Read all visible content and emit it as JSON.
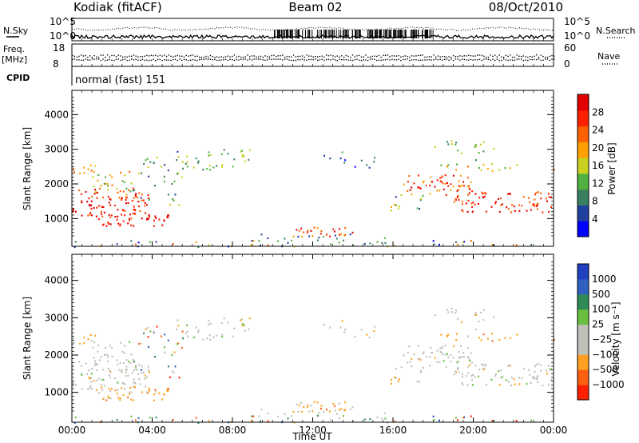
{
  "header": {
    "station": "Kodiak (fitACF)",
    "beam": "Beam 02",
    "date": "08/Oct/2010"
  },
  "noise_panel": {
    "left_label": "N.Sky",
    "right_label": "N.Search",
    "left_ticks": [
      "10^5",
      "10^0"
    ],
    "right_ticks": [
      "10^5",
      "10^0"
    ]
  },
  "freq_panel": {
    "left_label_1": "Freq.",
    "left_label_2": "[MHz]",
    "right_label": "Nave",
    "left_ticks": [
      "18",
      "8"
    ],
    "right_ticks": [
      "60",
      "0"
    ]
  },
  "cpid": {
    "label": "CPID",
    "text": "normal (fast) 151"
  },
  "colors": {
    "power": [
      "#0000ff",
      "#2040a0",
      "#3a8060",
      "#50b040",
      "#c8d020",
      "#ffa000",
      "#ff6000",
      "#ff2000",
      "#e00000"
    ],
    "velocity": [
      "#2040c0",
      "#3060c0",
      "#2e8b57",
      "#6abf40",
      "#c0c0b8",
      "#c0c0b8",
      "#ffa020",
      "#ff6010",
      "#ff2000"
    ]
  },
  "chart_data": [
    {
      "type": "heatmap",
      "panel": "power",
      "ylabel": "Slant Range [km]",
      "yticks": [
        "1000",
        "2000",
        "3000",
        "4000"
      ],
      "ylim": [
        200,
        4700
      ],
      "xlim": [
        0,
        24
      ],
      "colorbar_label": "Power [dB]",
      "colorbar_ticks": [
        "4",
        "8",
        "12",
        "16",
        "20",
        "24",
        "28"
      ],
      "grid": false
    },
    {
      "type": "heatmap",
      "panel": "velocity",
      "ylabel": "Slant Range [km]",
      "yticks": [
        "1000",
        "2000",
        "3000",
        "4000"
      ],
      "ylim": [
        200,
        4700
      ],
      "xlim": [
        0,
        24
      ],
      "xlabel": "Time UT",
      "xticks": [
        "00:00",
        "04:00",
        "08:00",
        "12:00",
        "16:00",
        "20:00",
        "00:00"
      ],
      "colorbar_label": "Velocity [m s⁻¹]",
      "colorbar_ticks": [
        "1000",
        "500",
        "100",
        "25",
        "−25",
        "−100",
        "−500",
        "−1000"
      ],
      "grid": false
    }
  ]
}
